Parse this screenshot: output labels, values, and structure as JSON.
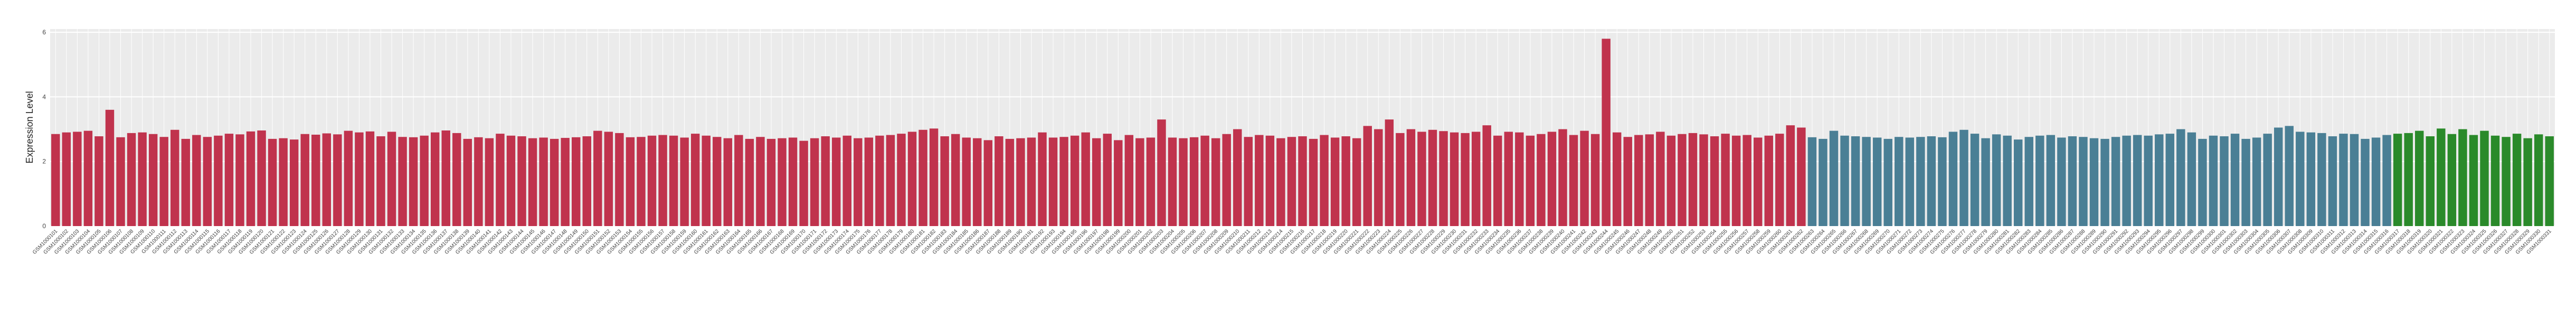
{
  "chart_data": {
    "type": "bar",
    "y_label": "Expression Level",
    "ylim": [
      0,
      6.1
    ],
    "yticks": [
      0,
      2,
      4,
      6
    ],
    "grid": true,
    "series": [
      {
        "color": "#c0334d",
        "categories": [
          "GSM1000101",
          "GSM1000102",
          "GSM1000103",
          "GSM1000104",
          "GSM1000105",
          "GSM1000106",
          "GSM1000107",
          "GSM1000108",
          "GSM1000109",
          "GSM1000110",
          "GSM1000111",
          "GSM1000112",
          "GSM1000113",
          "GSM1000114",
          "GSM1000115",
          "GSM1000116",
          "GSM1000117",
          "GSM1000118",
          "GSM1000119",
          "GSM1000120",
          "GSM1000121",
          "GSM1000122",
          "GSM1000123",
          "GSM1000124",
          "GSM1000125",
          "GSM1000126",
          "GSM1000127",
          "GSM1000128",
          "GSM1000129",
          "GSM1000130",
          "GSM1000131",
          "GSM1000132",
          "GSM1000133",
          "GSM1000134",
          "GSM1000135",
          "GSM1000136",
          "GSM1000137",
          "GSM1000138",
          "GSM1000139",
          "GSM1000140",
          "GSM1000141",
          "GSM1000142",
          "GSM1000143",
          "GSM1000144",
          "GSM1000145",
          "GSM1000146",
          "GSM1000147",
          "GSM1000148",
          "GSM1000149",
          "GSM1000150",
          "GSM1000151",
          "GSM1000152",
          "GSM1000153",
          "GSM1000154",
          "GSM1000155",
          "GSM1000156",
          "GSM1000157",
          "GSM1000158",
          "GSM1000159",
          "GSM1000160",
          "GSM1000161",
          "GSM1000162",
          "GSM1000163",
          "GSM1000164",
          "GSM1000165",
          "GSM1000166",
          "GSM1000167",
          "GSM1000168",
          "GSM1000169",
          "GSM1000170",
          "GSM1000171",
          "GSM1000172",
          "GSM1000173",
          "GSM1000174",
          "GSM1000175",
          "GSM1000176",
          "GSM1000177",
          "GSM1000178",
          "GSM1000179",
          "GSM1000180",
          "GSM1000181",
          "GSM1000182",
          "GSM1000183",
          "GSM1000184",
          "GSM1000185",
          "GSM1000186",
          "GSM1000187",
          "GSM1000188",
          "GSM1000189",
          "GSM1000190",
          "GSM1000191",
          "GSM1000192",
          "GSM1000193",
          "GSM1000194",
          "GSM1000195",
          "GSM1000196",
          "GSM1000197",
          "GSM1000198",
          "GSM1000199",
          "GSM1000200",
          "GSM1000201",
          "GSM1000202",
          "GSM1000203",
          "GSM1000204",
          "GSM1000205",
          "GSM1000206",
          "GSM1000207",
          "GSM1000208",
          "GSM1000209",
          "GSM1000210",
          "GSM1000211",
          "GSM1000212",
          "GSM1000213",
          "GSM1000214",
          "GSM1000215",
          "GSM1000216",
          "GSM1000217",
          "GSM1000218",
          "GSM1000219",
          "GSM1000220",
          "GSM1000221",
          "GSM1000222",
          "GSM1000223",
          "GSM1000224",
          "GSM1000225",
          "GSM1000226",
          "GSM1000227",
          "GSM1000228",
          "GSM1000229",
          "GSM1000230",
          "GSM1000231",
          "GSM1000232",
          "GSM1000233",
          "GSM1000234",
          "GSM1000235",
          "GSM1000236",
          "GSM1000237",
          "GSM1000238",
          "GSM1000239",
          "GSM1000240",
          "GSM1000241",
          "GSM1000242",
          "GSM1000243",
          "GSM1000244",
          "GSM1000245",
          "GSM1000246",
          "GSM1000247",
          "GSM1000248",
          "GSM1000249",
          "GSM1000250",
          "GSM1000251",
          "GSM1000252",
          "GSM1000253",
          "GSM1000254",
          "GSM1000255",
          "GSM1000256",
          "GSM1000257",
          "GSM1000258",
          "GSM1000259",
          "GSM1000260",
          "GSM1000261",
          "GSM1000262"
        ],
        "values": [
          2.85,
          2.9,
          2.92,
          2.95,
          2.78,
          3.6,
          2.75,
          2.88,
          2.9,
          2.85,
          2.76,
          2.98,
          2.7,
          2.82,
          2.76,
          2.8,
          2.86,
          2.84,
          2.93,
          2.96,
          2.7,
          2.72,
          2.68,
          2.85,
          2.83,
          2.87,
          2.84,
          2.95,
          2.9,
          2.93,
          2.78,
          2.92,
          2.76,
          2.75,
          2.8,
          2.9,
          2.96,
          2.88,
          2.7,
          2.75,
          2.72,
          2.86,
          2.8,
          2.78,
          2.72,
          2.74,
          2.7,
          2.73,
          2.75,
          2.78,
          2.95,
          2.92,
          2.88,
          2.75,
          2.76,
          2.8,
          2.82,
          2.8,
          2.74,
          2.86,
          2.8,
          2.76,
          2.72,
          2.82,
          2.7,
          2.76,
          2.7,
          2.72,
          2.74,
          2.64,
          2.72,
          2.78,
          2.74,
          2.8,
          2.72,
          2.74,
          2.8,
          2.82,
          2.86,
          2.92,
          2.98,
          3.02,
          2.78,
          2.85,
          2.74,
          2.72,
          2.66,
          2.78,
          2.7,
          2.72,
          2.74,
          2.9,
          2.74,
          2.76,
          2.8,
          2.9,
          2.72,
          2.86,
          2.66,
          2.82,
          2.72,
          2.74,
          3.3,
          2.74,
          2.72,
          2.75,
          2.8,
          2.72,
          2.85,
          3.0,
          2.76,
          2.82,
          2.8,
          2.72,
          2.76,
          2.78,
          2.7,
          2.82,
          2.74,
          2.78,
          2.72,
          3.1,
          3.0,
          3.3,
          2.88,
          3.0,
          2.92,
          2.98,
          2.94,
          2.9,
          2.88,
          2.92,
          3.12,
          2.8,
          2.92,
          2.9,
          2.8,
          2.85,
          2.92,
          3.0,
          2.82,
          2.95,
          2.85,
          5.8,
          2.9,
          2.76,
          2.82,
          2.84,
          2.92,
          2.8,
          2.85,
          2.88,
          2.84,
          2.78,
          2.86,
          2.8,
          2.82,
          2.74,
          2.8,
          2.86,
          3.12,
          3.05
        ]
      },
      {
        "color": "#4a7f95",
        "categories": [
          "GSM1000263",
          "GSM1000264",
          "GSM1000265",
          "GSM1000266",
          "GSM1000267",
          "GSM1000268",
          "GSM1000269",
          "GSM1000270",
          "GSM1000271",
          "GSM1000272",
          "GSM1000273",
          "GSM1000274",
          "GSM1000275",
          "GSM1000276",
          "GSM1000277",
          "GSM1000278",
          "GSM1000279",
          "GSM1000280",
          "GSM1000281",
          "GSM1000282",
          "GSM1000283",
          "GSM1000284",
          "GSM1000285",
          "GSM1000286",
          "GSM1000287",
          "GSM1000288",
          "GSM1000289",
          "GSM1000290",
          "GSM1000291",
          "GSM1000292",
          "GSM1000293",
          "GSM1000294",
          "GSM1000295",
          "GSM1000296",
          "GSM1000297",
          "GSM1000298",
          "GSM1000299",
          "GSM1000300",
          "GSM1000301",
          "GSM1000302",
          "GSM1000303",
          "GSM1000304",
          "GSM1000305",
          "GSM1000306",
          "GSM1000307",
          "GSM1000308",
          "GSM1000309",
          "GSM1000310",
          "GSM1000311",
          "GSM1000312",
          "GSM1000313",
          "GSM1000314",
          "GSM1000315",
          "GSM1000316"
        ],
        "values": [
          2.75,
          2.7,
          2.95,
          2.8,
          2.78,
          2.76,
          2.74,
          2.7,
          2.76,
          2.74,
          2.76,
          2.78,
          2.75,
          2.92,
          2.98,
          2.86,
          2.72,
          2.84,
          2.8,
          2.68,
          2.76,
          2.8,
          2.82,
          2.74,
          2.78,
          2.76,
          2.72,
          2.7,
          2.76,
          2.8,
          2.82,
          2.8,
          2.84,
          2.86,
          3.0,
          2.9,
          2.7,
          2.8,
          2.78,
          2.86,
          2.7,
          2.74,
          2.86,
          3.05,
          3.1,
          2.92,
          2.9,
          2.88,
          2.78,
          2.86,
          2.85,
          2.7,
          2.74,
          2.82
        ]
      },
      {
        "color": "#2a8a2a",
        "categories": [
          "GSM1000317",
          "GSM1000318",
          "GSM1000319",
          "GSM1000320",
          "GSM1000321",
          "GSM1000322",
          "GSM1000323",
          "GSM1000324",
          "GSM1000325",
          "GSM1000326",
          "GSM1000327",
          "GSM1000328",
          "GSM1000329",
          "GSM1000330",
          "GSM1000331"
        ],
        "values": [
          2.86,
          2.88,
          2.95,
          2.78,
          3.02,
          2.85,
          3.0,
          2.82,
          2.95,
          2.8,
          2.76,
          2.86,
          2.72,
          2.84,
          2.78
        ]
      }
    ]
  }
}
